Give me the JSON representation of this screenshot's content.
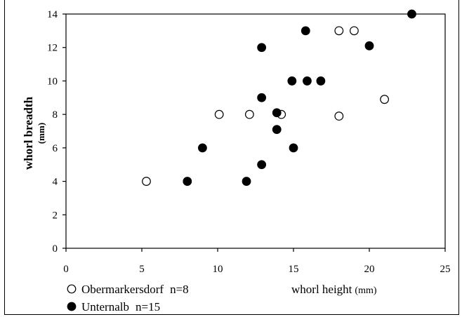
{
  "chart_data": {
    "type": "scatter",
    "xlabel": "whorl height",
    "xlabel_unit": "(mm)",
    "ylabel": "whorl breadth",
    "ylabel_unit": "(mm)",
    "xlim": [
      0,
      25
    ],
    "ylim": [
      0,
      14
    ],
    "x_ticks": [
      0,
      5,
      10,
      15,
      20,
      25
    ],
    "y_ticks": [
      0,
      2,
      4,
      6,
      8,
      10,
      12,
      14
    ],
    "x_tick_labels": [
      "0",
      "5",
      "10",
      "15",
      "20",
      "25"
    ],
    "y_tick_labels": [
      "0",
      "2",
      "4",
      "6",
      "8",
      "10",
      "12",
      "14"
    ],
    "grid": false,
    "legend_position": "bottom-left",
    "series": [
      {
        "name": "Obermarkersdorf",
        "n_label": "n=8",
        "marker": "open-circle",
        "color": "#ffffff",
        "points": [
          {
            "x": 5.3,
            "y": 4.0
          },
          {
            "x": 10.1,
            "y": 8.0
          },
          {
            "x": 12.1,
            "y": 8.0
          },
          {
            "x": 14.2,
            "y": 8.0
          },
          {
            "x": 18.0,
            "y": 7.9
          },
          {
            "x": 18.0,
            "y": 13.0
          },
          {
            "x": 19.0,
            "y": 13.0
          },
          {
            "x": 21.0,
            "y": 8.9
          }
        ]
      },
      {
        "name": "Unternalb",
        "n_label": "n=15",
        "marker": "filled-circle",
        "color": "#000000",
        "points": [
          {
            "x": 8.0,
            "y": 4.0
          },
          {
            "x": 9.0,
            "y": 6.0
          },
          {
            "x": 11.9,
            "y": 4.0
          },
          {
            "x": 12.9,
            "y": 5.0
          },
          {
            "x": 12.9,
            "y": 9.0
          },
          {
            "x": 12.9,
            "y": 12.0
          },
          {
            "x": 13.9,
            "y": 8.1
          },
          {
            "x": 13.9,
            "y": 7.1
          },
          {
            "x": 14.9,
            "y": 10.0
          },
          {
            "x": 15.0,
            "y": 6.0
          },
          {
            "x": 15.8,
            "y": 13.0
          },
          {
            "x": 15.9,
            "y": 10.0
          },
          {
            "x": 16.8,
            "y": 10.0
          },
          {
            "x": 20.0,
            "y": 12.1
          },
          {
            "x": 22.8,
            "y": 14.0
          }
        ]
      }
    ]
  }
}
